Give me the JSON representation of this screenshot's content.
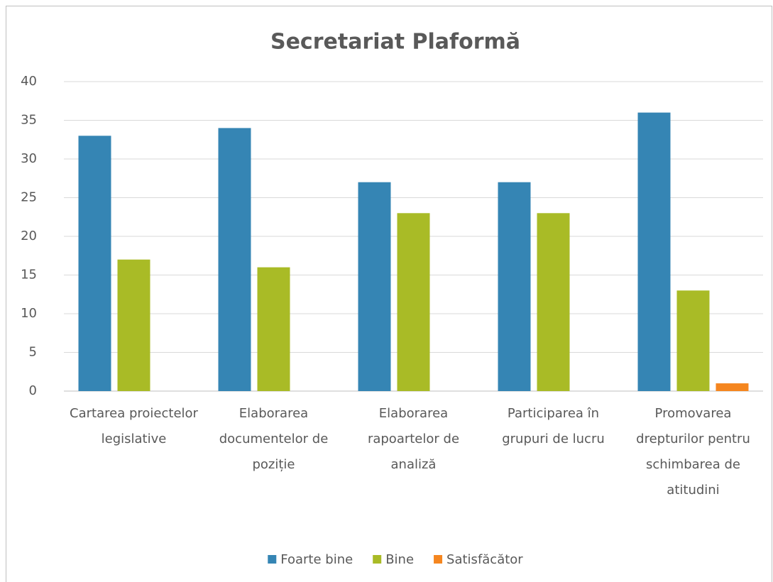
{
  "chart_data": {
    "type": "bar",
    "title": "Secretariat Plaformă",
    "categories": [
      "Cartarea proiectelor legislative",
      "Elaborarea documentelor de poziție",
      "Elaborarea rapoartelor de analiză",
      "Participarea în grupuri de lucru",
      "Promovarea drepturilor pentru schimbarea de atitudini"
    ],
    "series": [
      {
        "name": "Foarte bine",
        "color": "#3585b4",
        "values": [
          33,
          34,
          27,
          27,
          36
        ]
      },
      {
        "name": "Bine",
        "color": "#a9bb26",
        "values": [
          17,
          16,
          23,
          23,
          13
        ]
      },
      {
        "name": "Satisfăcător",
        "color": "#f5861f",
        "values": [
          0,
          0,
          0,
          0,
          1
        ]
      }
    ],
    "ylim": [
      0,
      40
    ],
    "yticks": [
      0,
      5,
      10,
      15,
      20,
      25,
      30,
      35,
      40
    ],
    "grid": true,
    "legend": "bottom"
  }
}
